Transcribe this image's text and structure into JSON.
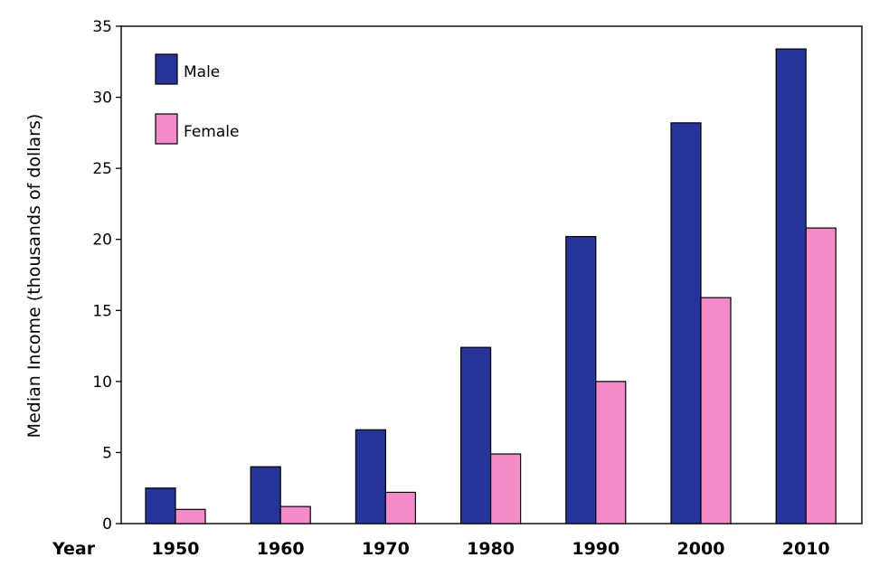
{
  "chart_data": {
    "type": "bar",
    "categories": [
      "1950",
      "1960",
      "1970",
      "1980",
      "1990",
      "2000",
      "2010"
    ],
    "series": [
      {
        "name": "Male",
        "values": [
          2.5,
          4.0,
          6.6,
          12.4,
          20.2,
          28.2,
          33.4
        ],
        "color": "#27349a"
      },
      {
        "name": "Female",
        "values": [
          1.0,
          1.2,
          2.2,
          4.9,
          10.0,
          15.9,
          20.8
        ],
        "color": "#f38ac9"
      }
    ],
    "title": "",
    "xlabel": "Year",
    "ylabel": "Median Income (thousands of dollars)",
    "ylim": [
      0,
      35
    ],
    "yticks": [
      "0",
      "5",
      "10",
      "15",
      "20",
      "25",
      "30",
      "35"
    ],
    "legend_placement": "top-left",
    "grid": false
  }
}
